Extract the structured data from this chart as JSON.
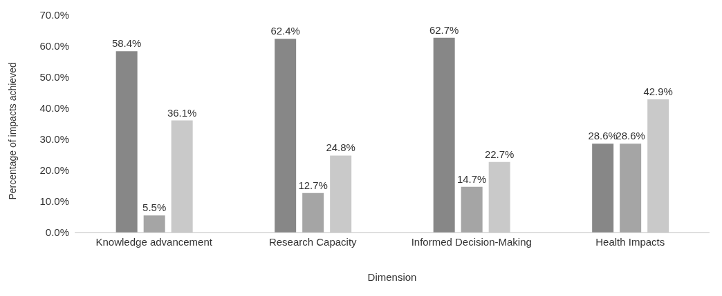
{
  "chart_data": {
    "type": "bar",
    "xlabel": "Dimension",
    "ylabel": "Percentage of impacts achieved",
    "categories": [
      "Knowledge advancement",
      "Research Capacity",
      "Informed Decision-Making",
      "Health Impacts"
    ],
    "series": [
      {
        "color": "#878787",
        "values": [
          58.4,
          62.4,
          62.7,
          28.6
        ],
        "value_labels": [
          "58.4%",
          "62.4%",
          "62.7%",
          "28.6%"
        ]
      },
      {
        "color": "#a5a5a5",
        "values": [
          5.5,
          12.7,
          14.7,
          28.6
        ],
        "value_labels": [
          "5.5%",
          "12.7%",
          "14.7%",
          "28.6%"
        ]
      },
      {
        "color": "#c9c9c9",
        "values": [
          36.1,
          24.8,
          22.7,
          42.9
        ],
        "value_labels": [
          "36.1%",
          "24.8%",
          "22.7%",
          "42.9%"
        ]
      }
    ],
    "ylim": [
      0,
      70
    ],
    "yticks": [
      {
        "value": 0,
        "label": "0.0%"
      },
      {
        "value": 10,
        "label": "10.0%"
      },
      {
        "value": 20,
        "label": "20.0%"
      },
      {
        "value": 30,
        "label": "30.0%"
      },
      {
        "value": 40,
        "label": "40.0%"
      },
      {
        "value": 50,
        "label": "50.0%"
      },
      {
        "value": 60,
        "label": "60.0%"
      },
      {
        "value": 70,
        "label": "70.0%"
      }
    ],
    "grid": false,
    "legend": false
  }
}
